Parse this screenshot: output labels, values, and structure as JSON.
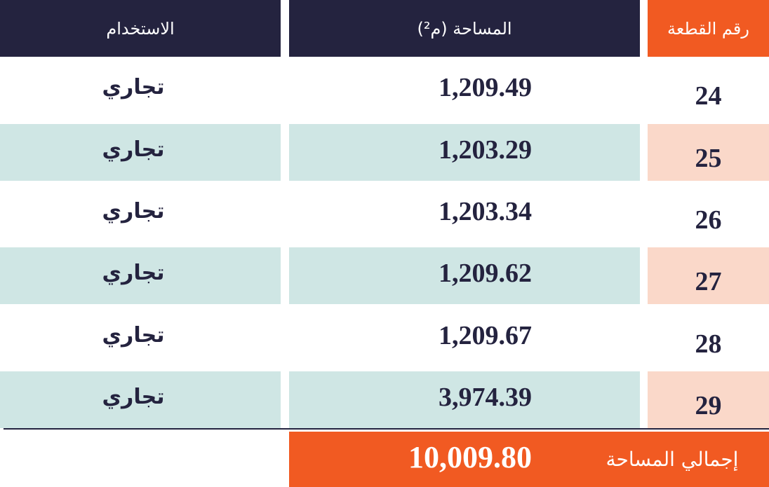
{
  "table": {
    "header": [
      "رقم القطعة",
      "المساحة (م²)",
      "الاستخدام"
    ],
    "rows": [
      [
        "24",
        "1,209.49",
        "تجاري"
      ],
      [
        "25",
        "1,203.29",
        "تجاري"
      ],
      [
        "26",
        "1,203.34",
        "تجاري"
      ],
      [
        "27",
        "1,209.62",
        "تجاري"
      ],
      [
        "28",
        "1,209.67",
        "تجاري"
      ],
      [
        "29",
        "3,974.39",
        "تجاري"
      ]
    ],
    "total": {
      "label": "إجمالي المساحة",
      "value": "10,009.80"
    }
  }
}
